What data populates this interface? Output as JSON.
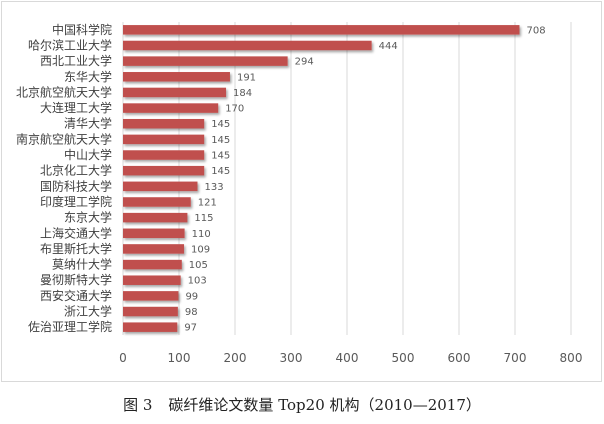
{
  "caption": {
    "figure_number": "图 3",
    "text": "碳纤维论文数量 Top20 机构（2010—2017）"
  },
  "chart_data": {
    "type": "bar",
    "orientation": "horizontal",
    "categories": [
      "中国科学院",
      "哈尔滨工业大学",
      "西北工业大学",
      "东华大学",
      "北京航空航天大学",
      "大连理工大学",
      "清华大学",
      "南京航空航天大学",
      "中山大学",
      "北京化工大学",
      "国防科技大学",
      "印度理工学院",
      "东京大学",
      "上海交通大学",
      "布里斯托大学",
      "莫纳什大学",
      "曼彻斯特大学",
      "西安交通大学",
      "浙江大学",
      "佐治亚理工学院"
    ],
    "values": [
      708,
      444,
      294,
      191,
      184,
      170,
      145,
      145,
      145,
      145,
      133,
      121,
      115,
      110,
      109,
      105,
      103,
      99,
      98,
      97
    ],
    "xlim": [
      0,
      800
    ],
    "xticks": [
      0,
      100,
      200,
      300,
      400,
      500,
      600,
      700,
      800
    ],
    "grid": "vertical",
    "bar_color": "#c0504d",
    "grid_color": "#d9d9d9"
  }
}
